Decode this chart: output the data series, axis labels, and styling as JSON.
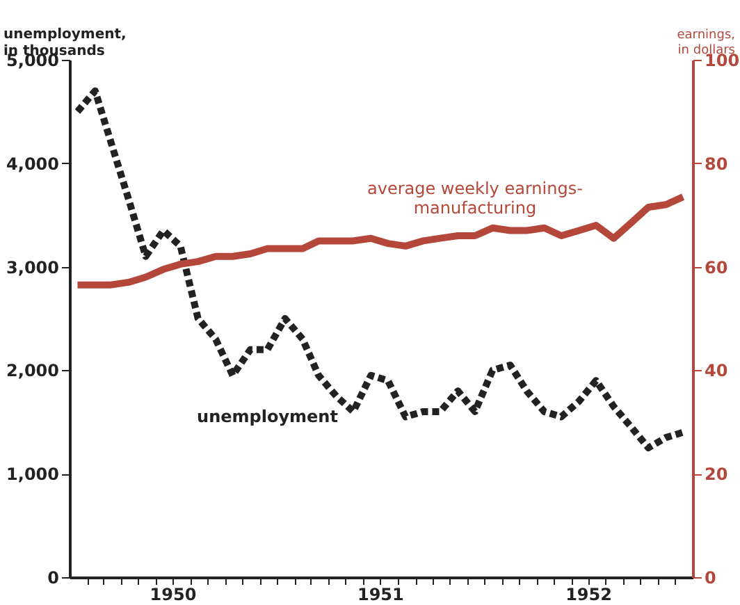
{
  "chart_data": {
    "type": "line",
    "ylabel": "unemployment,\nin thousands",
    "y2label": "earnings,\nin dollars",
    "x": [
      "1950-01-15",
      "1950-02-15",
      "1950-03-15",
      "1950-04-15",
      "1950-05-15",
      "1950-06-15",
      "1950-07-15",
      "1950-08-15",
      "1950-09-15",
      "1950-10-15",
      "1950-11-15",
      "1950-12-15",
      "1951-01-15",
      "1951-02-15",
      "1951-03-15",
      "1951-04-15",
      "1951-05-15",
      "1951-06-15",
      "1951-07-15",
      "1951-08-15",
      "1951-09-15",
      "1951-10-15",
      "1951-11-15",
      "1951-12-15",
      "1952-01-15",
      "1952-02-15",
      "1952-03-15",
      "1952-04-15",
      "1952-05-15",
      "1952-06-15",
      "1952-07-15",
      "1952-08-15",
      "1952-09-15",
      "1952-10-15",
      "1952-11-15",
      "1952-12-15"
    ],
    "xlim": [
      "1950-01-01",
      "1953-01-01"
    ],
    "xticks": [
      {
        "value": "1950-02-01",
        "label": null
      },
      {
        "value": "1950-03-01",
        "label": null
      },
      {
        "value": "1950-04-01",
        "label": null
      },
      {
        "value": "1950-05-01",
        "label": null
      },
      {
        "value": "1950-06-01",
        "label": null
      },
      {
        "value": "1950-07-01",
        "label": "1950"
      },
      {
        "value": "1950-08-01",
        "label": null
      },
      {
        "value": "1950-09-01",
        "label": null
      },
      {
        "value": "1950-10-01",
        "label": null
      },
      {
        "value": "1950-11-01",
        "label": null
      },
      {
        "value": "1950-12-01",
        "label": null
      },
      {
        "value": "1951-01-01",
        "label": null
      },
      {
        "value": "1951-02-01",
        "label": null
      },
      {
        "value": "1951-03-01",
        "label": null
      },
      {
        "value": "1951-04-01",
        "label": null
      },
      {
        "value": "1951-05-01",
        "label": null
      },
      {
        "value": "1951-06-01",
        "label": null
      },
      {
        "value": "1951-07-01",
        "label": "1951"
      },
      {
        "value": "1951-08-01",
        "label": null
      },
      {
        "value": "1951-09-01",
        "label": null
      },
      {
        "value": "1951-10-01",
        "label": null
      },
      {
        "value": "1951-11-01",
        "label": null
      },
      {
        "value": "1951-12-01",
        "label": null
      },
      {
        "value": "1952-01-01",
        "label": null
      },
      {
        "value": "1952-02-01",
        "label": null
      },
      {
        "value": "1952-03-01",
        "label": null
      },
      {
        "value": "1952-04-01",
        "label": null
      },
      {
        "value": "1952-05-01",
        "label": null
      },
      {
        "value": "1952-06-01",
        "label": null
      },
      {
        "value": "1952-07-01",
        "label": "1952"
      },
      {
        "value": "1952-08-01",
        "label": null
      },
      {
        "value": "1952-09-01",
        "label": null
      },
      {
        "value": "1952-10-01",
        "label": null
      },
      {
        "value": "1952-11-01",
        "label": null
      },
      {
        "value": "1952-12-01",
        "label": null
      }
    ],
    "ylim": [
      0,
      5000
    ],
    "yticks": [
      0,
      {
        "value": 1000,
        "label": "1,000"
      },
      {
        "value": 2000,
        "label": "2,000"
      },
      {
        "value": 3000,
        "label": "3,000"
      },
      {
        "value": 4000,
        "label": "4,000"
      },
      {
        "value": 5000,
        "label": "5,000"
      }
    ],
    "y2lim": [
      0,
      100
    ],
    "y2ticks": [
      0,
      20,
      40,
      60,
      80,
      100
    ],
    "series": [
      {
        "name": "unemployment",
        "color": "#222222",
        "line_style": "dotted",
        "values": [
          4500,
          4700,
          4200,
          3650,
          3100,
          3350,
          3200,
          2500,
          2300,
          1950,
          2200,
          2200,
          2500,
          2300,
          1950,
          1750,
          1600,
          1950,
          1900,
          1550,
          1600,
          1600,
          1800,
          1600,
          2000,
          2050,
          1800,
          1600,
          1550,
          1700,
          1900,
          1650,
          1450,
          1250,
          1350,
          1400
        ]
      },
      {
        "name": "average weekly earnings-\nmanufacturing",
        "color": "#b5473a",
        "line_style": "solid",
        "axis": "y2",
        "values": [
          56.5,
          56.5,
          56.5,
          57,
          58,
          59.5,
          60.5,
          61,
          62,
          62,
          62.5,
          63.5,
          63.5,
          63.5,
          65,
          65,
          65,
          65.5,
          64.5,
          64,
          65,
          65.5,
          66,
          66,
          67.5,
          67,
          67,
          67.5,
          66,
          67,
          68,
          65.5,
          68.5,
          71.5,
          72,
          73.5
        ]
      }
    ],
    "grid": false
  }
}
